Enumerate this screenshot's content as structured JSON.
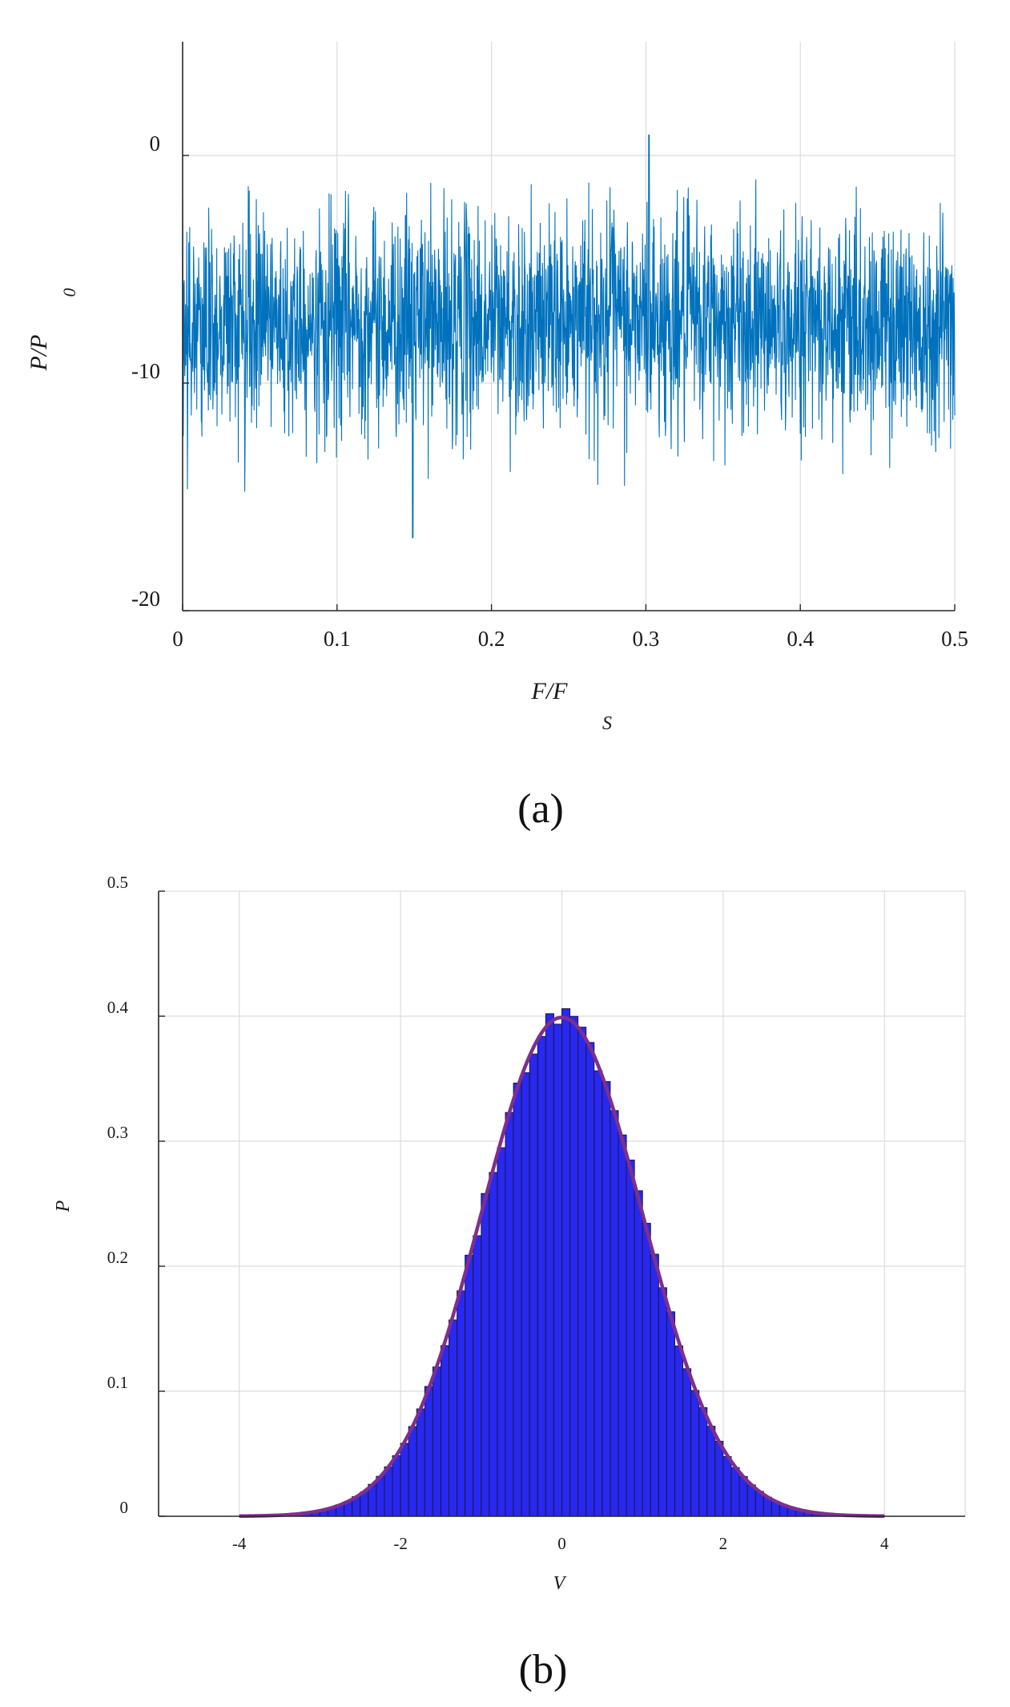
{
  "chart_data": [
    {
      "type": "line",
      "panel_label": "(a)",
      "xlabel_main": "F/F",
      "xlabel_sub": "S",
      "ylabel_main": "P/P",
      "ylabel_sub": "0",
      "xlim": [
        0,
        0.5
      ],
      "ylim": [
        -20,
        5
      ],
      "xticks": [
        0,
        0.1,
        0.2,
        0.3,
        0.4,
        0.5
      ],
      "xtick_labels": [
        "0",
        "0.1",
        "0.2",
        "0.3",
        "0.4",
        "0.5"
      ],
      "yticks": [
        0,
        -10,
        -20
      ],
      "ytick_labels": [
        "0",
        "-10",
        "-20"
      ],
      "grid": true,
      "color": "#0072BD",
      "series": [
        {
          "mean": -7.3,
          "dense_band": [
            -10.5,
            -4.0
          ],
          "typical_max": -1.5,
          "peak": {
            "x": 0.302,
            "y": 0.9
          },
          "typical_min": -15.5,
          "trough": {
            "x": 0.149,
            "y": -16.8
          }
        }
      ]
    },
    {
      "type": "bar",
      "panel_label": "(b)",
      "xlabel": "V",
      "ylabel": "P",
      "xlim": [
        -5,
        5
      ],
      "ylim": [
        0,
        0.5
      ],
      "xticks": [
        -4,
        -2,
        0,
        2,
        4
      ],
      "xtick_labels": [
        "-4",
        "-2",
        "0",
        "2",
        "4"
      ],
      "yticks": [
        0,
        0.1,
        0.2,
        0.3,
        0.4,
        0.5
      ],
      "ytick_labels": [
        "0",
        "0.1",
        "0.2",
        "0.3",
        "0.4",
        "0.5"
      ],
      "grid": true,
      "bins": {
        "start": -4,
        "end": 4,
        "width": 0.1
      },
      "bar_color": "#2828F0",
      "bar_edge": "#1a1a3a",
      "curve_color": "#7E2F8E",
      "curve": {
        "distribution": "normal",
        "mean": 0,
        "std": 1,
        "peak": 0.399
      },
      "histogram_max": {
        "x": 0.05,
        "y": 0.406
      }
    }
  ]
}
